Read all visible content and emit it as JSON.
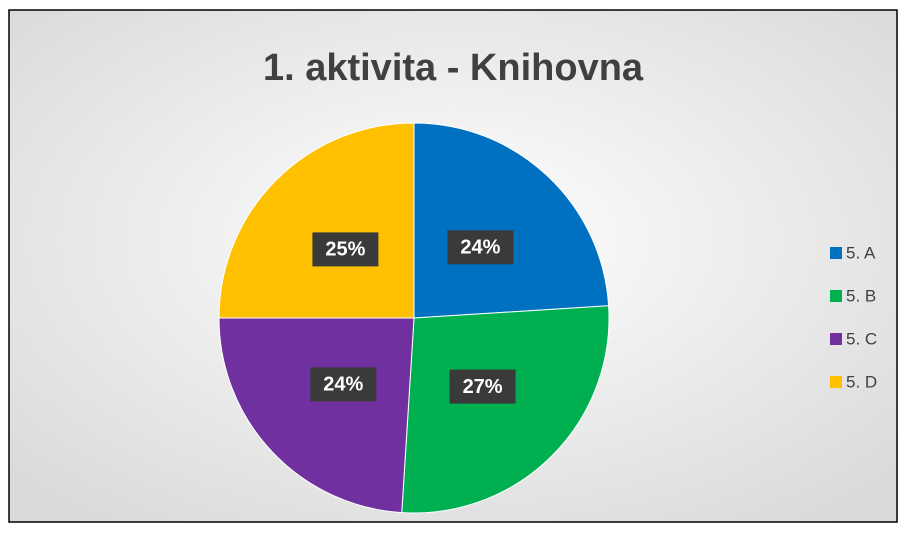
{
  "chart_data": {
    "type": "pie",
    "title": "1. aktivita - Knihovna",
    "categories": [
      "5. A",
      "5. B",
      "5. C",
      "5. D"
    ],
    "values": [
      24,
      27,
      24,
      25
    ],
    "value_labels": [
      "24%",
      "27%",
      "24%",
      "25%"
    ],
    "colors": [
      "#0070c0",
      "#00b050",
      "#7030a0",
      "#ffc000"
    ],
    "legend": "right"
  }
}
